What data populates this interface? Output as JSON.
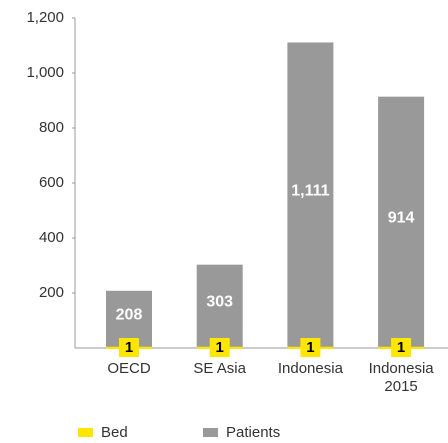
{
  "chart_data": {
    "type": "bar",
    "categories": [
      "OECD",
      "SE Asia",
      "Indonesia",
      "Indonesia 2015"
    ],
    "series": [
      {
        "name": "Bed",
        "color": "#ffe600",
        "values": [
          1,
          1,
          1,
          1
        ]
      },
      {
        "name": "Patients",
        "color": "#999999",
        "values": [
          208,
          303,
          1111,
          914
        ],
        "value_labels": [
          "208",
          "303",
          "1,111",
          "914"
        ]
      }
    ],
    "ylim": [
      0,
      1200
    ],
    "yticks": [
      200,
      400,
      600,
      800,
      {
        "value": 1000,
        "label": "1,000"
      },
      {
        "value": 1200,
        "label": "1,200"
      }
    ],
    "grid": false,
    "legend": "bottom"
  }
}
